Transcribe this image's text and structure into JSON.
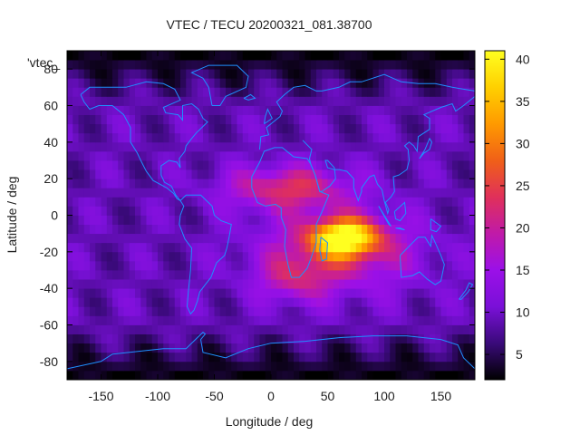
{
  "chart_data": {
    "type": "heatmap",
    "title": "VTEC / TECU 20200321_081.38700",
    "xlabel": "Longitude / deg",
    "ylabel": "Latitude / deg",
    "xlim": [
      -180,
      180
    ],
    "ylim": [
      -90,
      90
    ],
    "x_ticks": [
      -150,
      -100,
      -50,
      0,
      50,
      100,
      150
    ],
    "y_ticks": [
      -80,
      -60,
      -40,
      -20,
      0,
      20,
      40,
      60,
      80
    ],
    "colorbar": {
      "range": [
        2,
        41
      ],
      "ticks": [
        5,
        10,
        15,
        20,
        25,
        30,
        35,
        40
      ]
    },
    "legend_entry": "'vtec_",
    "colormap": [
      "#000000",
      "#3a0a7a",
      "#7a10d8",
      "#9b10e8",
      "#c01aa8",
      "#e0305a",
      "#f06018",
      "#ff9a00",
      "#ffd000",
      "#ffff20"
    ],
    "coastline_color": "#1e90ff",
    "peak": {
      "lon": 65,
      "lat": -12,
      "value": 40
    }
  }
}
